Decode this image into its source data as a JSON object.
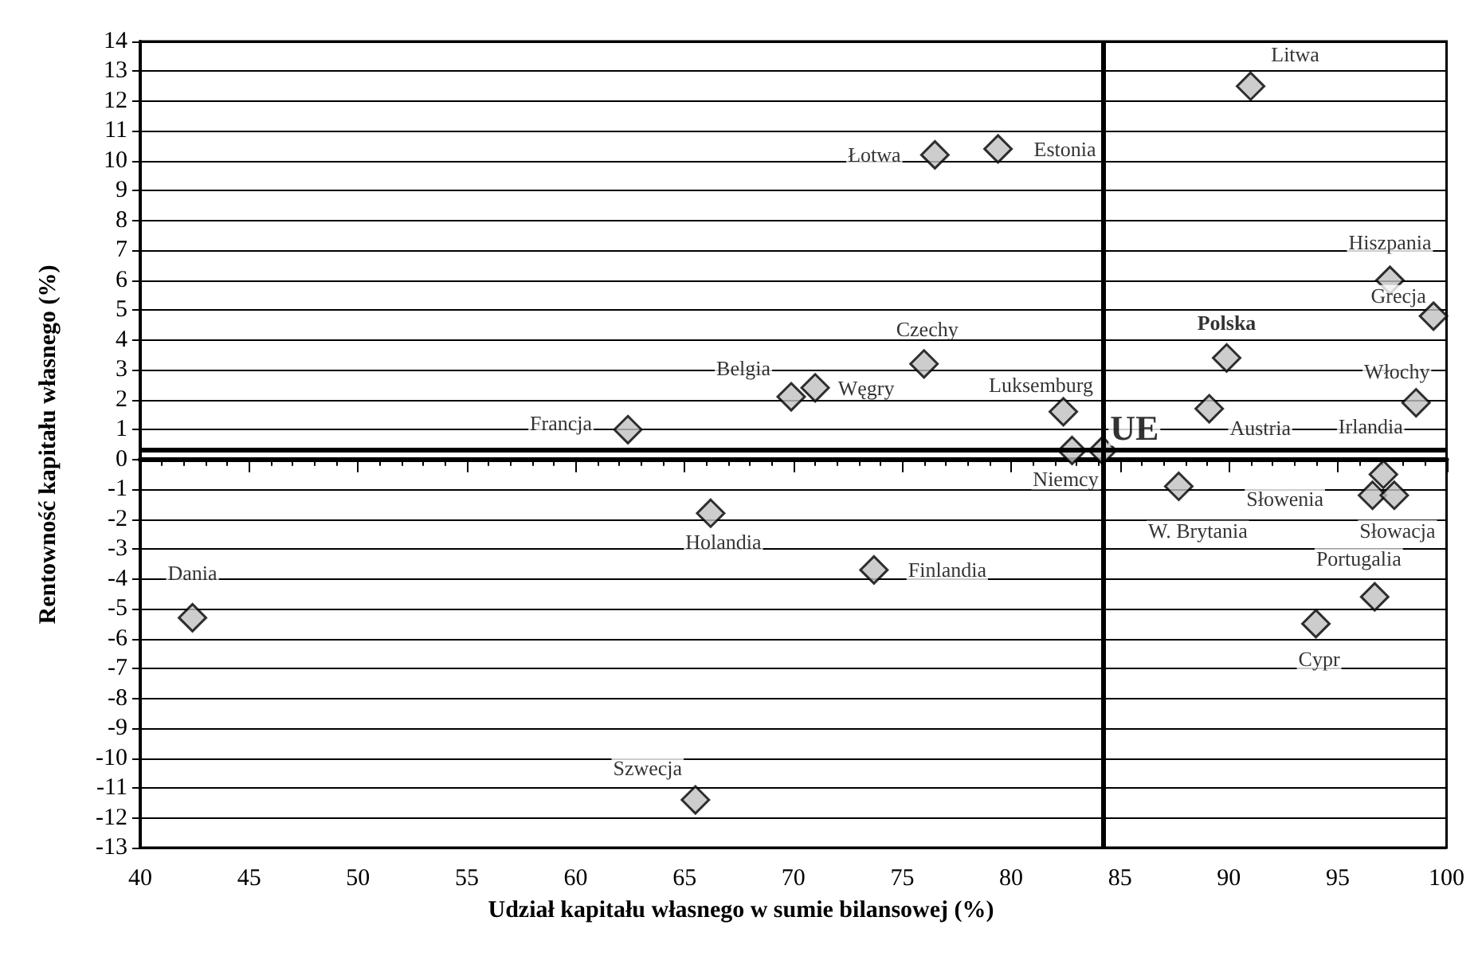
{
  "chart_data": {
    "type": "scatter",
    "xlabel": "Udział kapitału własnego w sumie bilansowej (%)",
    "ylabel": "Rentowność kapitału własnego (%)",
    "x": [
      42.4,
      65.5,
      66.2,
      62.4,
      69.9,
      71.0,
      76.0,
      76.5,
      79.4,
      91.0,
      82.4,
      82.8,
      84.2,
      73.7,
      89.9,
      89.1,
      87.7,
      97.4,
      99.4,
      98.6,
      97.1,
      96.6,
      97.6,
      96.7,
      94.0
    ],
    "series": [
      {
        "color": "#c0c0c0",
        "values": [
          -5.3,
          -11.4,
          -1.8,
          1.0,
          2.1,
          2.4,
          3.2,
          10.2,
          10.4,
          12.5,
          1.6,
          0.3,
          0.3,
          -3.7,
          3.4,
          1.7,
          -0.9,
          6.0,
          4.8,
          1.9,
          -0.5,
          -1.2,
          -1.2,
          -4.6,
          -5.5
        ]
      }
    ],
    "annotations": [
      {
        "text": "Dania",
        "x": 42.4,
        "y": -5.3
      },
      {
        "text": "Szwecja",
        "x": 65.5,
        "y": -11.4
      },
      {
        "text": "Holandia",
        "x": 66.2,
        "y": -1.8
      },
      {
        "text": "Francja",
        "x": 62.4,
        "y": 1.0
      },
      {
        "text": "Belgia",
        "x": 69.9,
        "y": 2.1
      },
      {
        "text": "Węgry",
        "x": 71.0,
        "y": 2.4
      },
      {
        "text": "Czechy",
        "x": 76.0,
        "y": 3.2
      },
      {
        "text": "Łotwa",
        "x": 76.5,
        "y": 10.2
      },
      {
        "text": "Estonia",
        "x": 79.4,
        "y": 10.4
      },
      {
        "text": "Litwa",
        "x": 91.0,
        "y": 12.5
      },
      {
        "text": "Luksemburg",
        "x": 82.4,
        "y": 1.6
      },
      {
        "text": "Niemcy",
        "x": 82.8,
        "y": 0.3
      },
      {
        "text": "UE",
        "x": 84.2,
        "y": 0.3
      },
      {
        "text": "Finlandia",
        "x": 73.7,
        "y": -3.7
      },
      {
        "text": "Polska",
        "x": 89.9,
        "y": 3.4
      },
      {
        "text": "Austria",
        "x": 89.1,
        "y": 1.7
      },
      {
        "text": "W. Brytania",
        "x": 87.7,
        "y": -0.9
      },
      {
        "text": "Hiszpania",
        "x": 97.4,
        "y": 6.0
      },
      {
        "text": "Grecja",
        "x": 99.4,
        "y": 4.8
      },
      {
        "text": "Włochy",
        "x": 98.6,
        "y": 1.9
      },
      {
        "text": "Irlandia",
        "x": 97.1,
        "y": -0.5
      },
      {
        "text": "Słowenia",
        "x": 96.6,
        "y": -1.2
      },
      {
        "text": "Słowacja",
        "x": 97.6,
        "y": -1.2
      },
      {
        "text": "Portugalia",
        "x": 96.7,
        "y": -4.6
      },
      {
        "text": "Cypr",
        "x": 94.0,
        "y": -5.5
      }
    ],
    "xlim": [
      40,
      100
    ],
    "xticks": [
      40,
      45,
      50,
      55,
      60,
      65,
      70,
      75,
      80,
      85,
      90,
      95,
      100
    ],
    "ylim": [
      -13,
      14
    ],
    "yticks": [
      -13,
      -12,
      -11,
      -10,
      -9,
      -8,
      -7,
      -6,
      -5,
      -4,
      -3,
      -2,
      -1,
      0,
      1,
      2,
      3,
      4,
      5,
      6,
      7,
      8,
      9,
      10,
      11,
      12,
      13,
      14
    ],
    "grid": "y",
    "marker": "diamond",
    "ref_lines": [
      {
        "axis": "x",
        "value": 84.2,
        "color": "#000000"
      },
      {
        "axis": "y",
        "value": 0.3,
        "color": "#000000"
      }
    ]
  }
}
